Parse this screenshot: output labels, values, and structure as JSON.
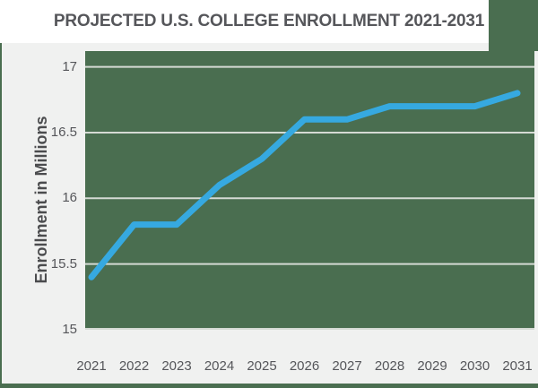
{
  "title": "PROJECTED U.S. COLLEGE ENROLLMENT 2021-2031",
  "chart_data": {
    "type": "line",
    "title": "PROJECTED U.S. COLLEGE ENROLLMENT 2021-2031",
    "x": [
      "2021",
      "2022",
      "2023",
      "2024",
      "2025",
      "2026",
      "2027",
      "2028",
      "2029",
      "2030",
      "2031"
    ],
    "series": [
      {
        "name": "Projected U.S. college enrollment (millions)",
        "values": [
          15.4,
          15.8,
          15.8,
          16.1,
          16.3,
          16.6,
          16.6,
          16.7,
          16.7,
          16.7,
          16.8
        ]
      }
    ],
    "xlabel": "",
    "ylabel": "Enrollment in Millions",
    "yticks": [
      15,
      15.5,
      16,
      16.5,
      17
    ],
    "ylim": [
      15,
      17.12
    ],
    "grid": true,
    "legend": "none",
    "line_color": "#36A9E0",
    "plot_background": "#4A6E50",
    "gridline_color": "#D5DAD4"
  },
  "colors": {
    "page_background": "#FFFFFF",
    "canvas_green": "#4A6E50",
    "card_gray": "#F0F1F0",
    "gridline": "#D5DAD4",
    "line_blue": "#36A9E0",
    "title_text": "#55565A",
    "tick_text": "#55565A",
    "axis_label_text": "#4B4C4E"
  }
}
